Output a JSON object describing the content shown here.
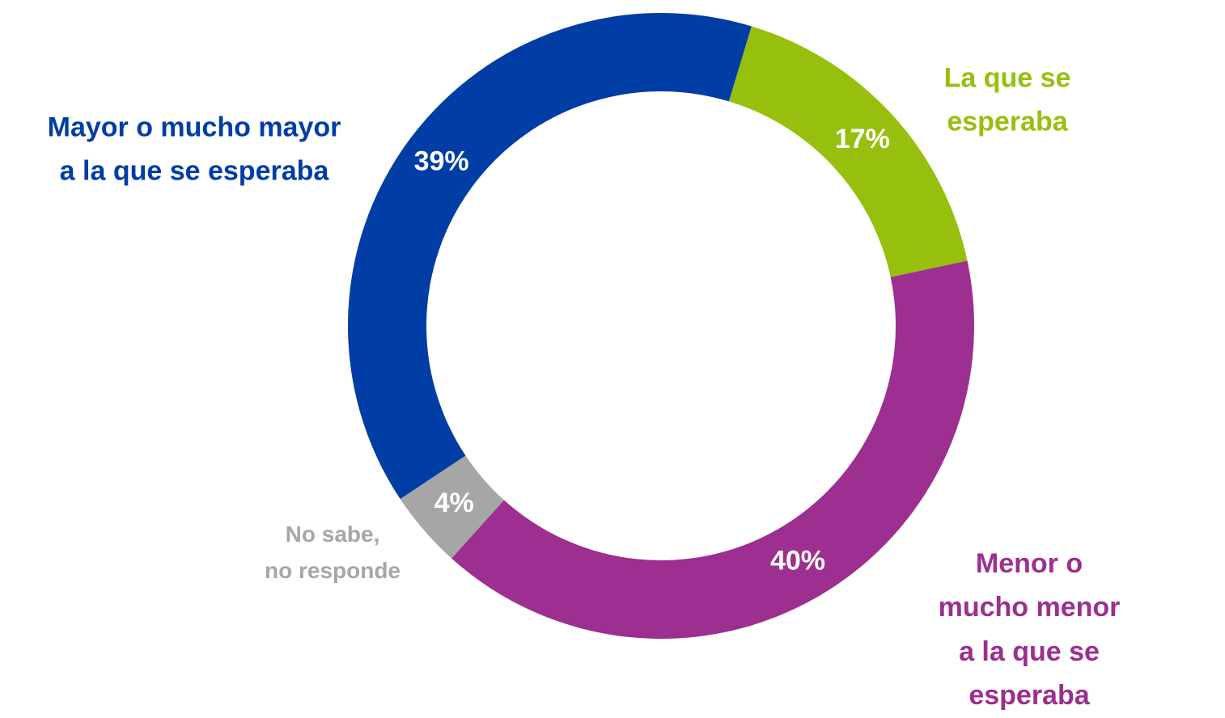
{
  "chart_data": {
    "type": "donut",
    "categories": [
      "La que se\nesperaba",
      "Menor o mucho menor\na la que se esperaba",
      "No sabe,\nno responde",
      "Mayor o mucho mayor\na la que se esperaba"
    ],
    "values": [
      17,
      40,
      4,
      39
    ],
    "value_labels": [
      "17%",
      "40%",
      "4%",
      "39%"
    ],
    "colors": [
      "#97bf0d",
      "#9c2f8f",
      "#a6a6a6",
      "#003da5"
    ]
  }
}
